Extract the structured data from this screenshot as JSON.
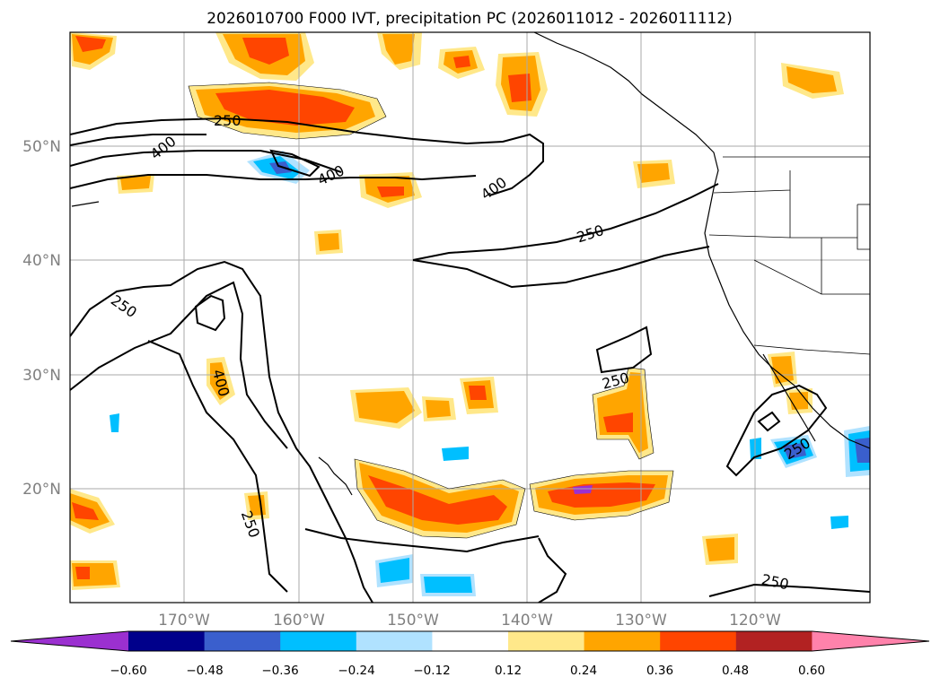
{
  "title": "2026010700 F000 IVT, precipitation PC (2026011012 - 2026011112)",
  "map": {
    "lon_range": [
      -180,
      -110
    ],
    "lat_range": [
      10,
      60
    ],
    "grid": true,
    "lon_labels": [
      "170°W",
      "160°W",
      "150°W",
      "140°W",
      "130°W",
      "120°W"
    ],
    "lat_labels": [
      "50°N",
      "40°N",
      "30°N",
      "20°N"
    ],
    "contour_labels": [
      "250",
      "400",
      "400",
      "400",
      "250",
      "250",
      "400",
      "250",
      "250",
      "250",
      "250"
    ]
  },
  "colorbar": {
    "orientation": "horizontal",
    "extend": "both",
    "tick_labels": [
      "−0.60",
      "−0.48",
      "−0.36",
      "−0.24",
      "−0.12",
      "0.12",
      "0.24",
      "0.36",
      "0.48",
      "0.60"
    ],
    "colors": [
      "#9b30d0",
      "#00008b",
      "#3a5fcd",
      "#00bfff",
      "#b0e2ff",
      "#ffffff",
      "#ffe88a",
      "#ffa500",
      "#ff4500",
      "#b22222",
      "#ff82ab"
    ]
  }
}
